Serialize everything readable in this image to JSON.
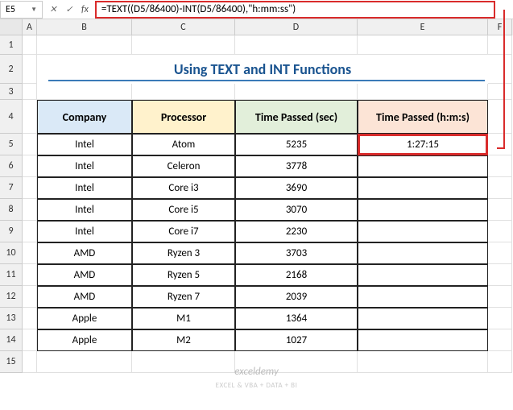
{
  "formula_bar": {
    "cell_ref": "E5",
    "formula": "=TEXT((D5/86400)-INT(D5/86400),\"h:mm:ss\")"
  },
  "columns": [
    "A",
    "B",
    "C",
    "D",
    "E",
    "F"
  ],
  "title": "Using TEXT and INT Functions",
  "headers": {
    "company": "Company",
    "processor": "Processor",
    "time_sec": "Time Passed (sec)",
    "time_hms": "Time Passed (h:m:s)"
  },
  "rows": [
    {
      "n": 5,
      "company": "Intel",
      "processor": "Atom",
      "sec": "5235",
      "hms": "1:27:15"
    },
    {
      "n": 6,
      "company": "Intel",
      "processor": "Celeron",
      "sec": "3778",
      "hms": ""
    },
    {
      "n": 7,
      "company": "Intel",
      "processor": "Core i3",
      "sec": "3690",
      "hms": ""
    },
    {
      "n": 8,
      "company": "Intel",
      "processor": "Core i5",
      "sec": "3070",
      "hms": ""
    },
    {
      "n": 9,
      "company": "Intel",
      "processor": "Core i7",
      "sec": "2230",
      "hms": ""
    },
    {
      "n": 10,
      "company": "AMD",
      "processor": "Ryzen 3",
      "sec": "3703",
      "hms": ""
    },
    {
      "n": 11,
      "company": "AMD",
      "processor": "Ryzen 5",
      "sec": "2168",
      "hms": ""
    },
    {
      "n": 12,
      "company": "AMD",
      "processor": "Ryzen 7",
      "sec": "2039",
      "hms": ""
    },
    {
      "n": 13,
      "company": "Apple",
      "processor": "M1",
      "sec": "1364",
      "hms": ""
    },
    {
      "n": 14,
      "company": "Apple",
      "processor": "M2",
      "sec": "1027",
      "hms": ""
    }
  ],
  "row_labels": [
    "1",
    "2",
    "3",
    "4",
    "5",
    "6",
    "7",
    "8",
    "9",
    "10",
    "11",
    "12",
    "13",
    "14",
    "15"
  ],
  "watermark": "exceldemy",
  "watermark_sub": "EXCEL & VBA + DATA + BI",
  "colors": {
    "highlight": "#d92b2b",
    "header_b": "#dae9f7",
    "header_c": "#fff2cc",
    "header_d": "#e2efda",
    "header_e": "#fce4d6",
    "title": "#1a5490"
  }
}
